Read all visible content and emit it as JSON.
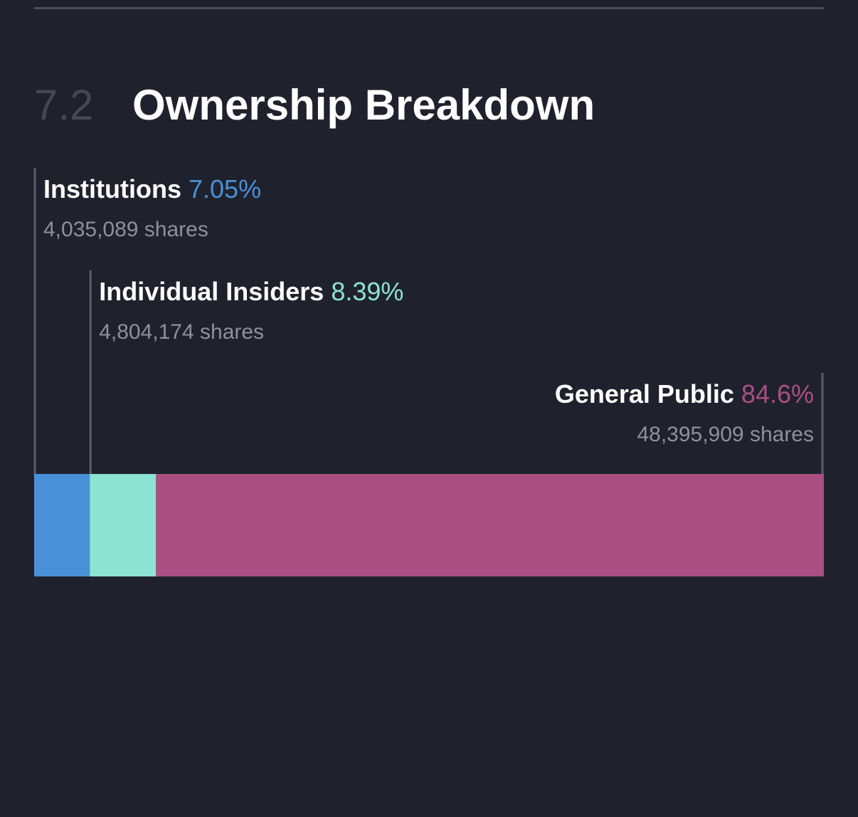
{
  "section": {
    "number": "7.2",
    "title": "Ownership Breakdown"
  },
  "chart_data": {
    "type": "bar",
    "orientation": "horizontal-stacked",
    "unit": "%",
    "categories": [
      "Institutions",
      "Individual Insiders",
      "General Public"
    ],
    "values": [
      7.05,
      8.39,
      84.6
    ],
    "value_labels": [
      "7.05%",
      "8.39%",
      "84.6%"
    ],
    "shares_labels": [
      "4,035,089 shares",
      "4,804,174 shares",
      "48,395,909 shares"
    ],
    "colors": [
      "#4a90d9",
      "#8ee3d3",
      "#ab4f82"
    ]
  }
}
